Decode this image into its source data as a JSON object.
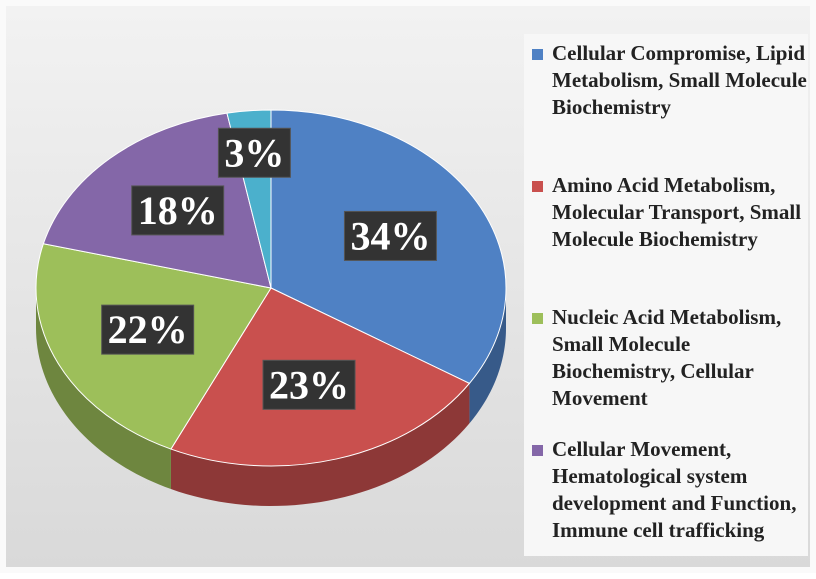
{
  "chart_data": {
    "type": "pie",
    "categories": [
      "Cellular Compromise, Lipid Metabolism, Small Molecule Biochemistry",
      "Amino Acid Metabolism, Molecular Transport, Small Molecule Biochemistry",
      "Nucleic Acid Metabolism, Small Molecule Biochemistry, Cellular Movement",
      "Cellular Movement, Hematological system development and Function, Immune cell trafficking",
      null
    ],
    "values": [
      34,
      23,
      22,
      18,
      3
    ],
    "value_labels": [
      "34%",
      "23%",
      "22%",
      "18%",
      "3%"
    ],
    "colors": [
      "#4f81c4",
      "#c9504e",
      "#9dbf5a",
      "#8467a8",
      "#4bb0cc"
    ]
  }
}
